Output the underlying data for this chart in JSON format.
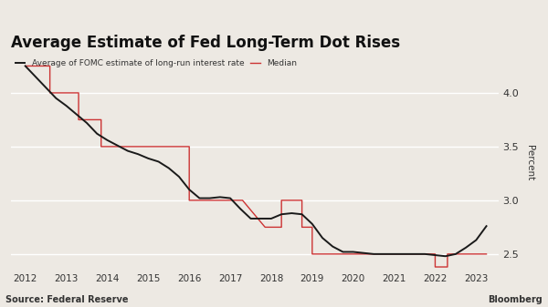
{
  "title": "Average Estimate of Fed Long-Term Dot Rises",
  "legend_avg": "Average of FOMC estimate of long-run interest rate",
  "legend_median": "Median",
  "source": "Source: Federal Reserve",
  "branding": "Bloomberg",
  "ylabel": "Percent",
  "background_color": "#ede9e3",
  "grid_color": "#ffffff",
  "avg_color": "#1a1a1a",
  "median_color": "#cc3333",
  "ylim": [
    2.35,
    4.35
  ],
  "yticks": [
    2.5,
    3.0,
    3.5,
    4.0
  ],
  "avg_x": [
    2012.0,
    2012.25,
    2012.5,
    2012.75,
    2013.0,
    2013.25,
    2013.5,
    2013.75,
    2014.0,
    2014.25,
    2014.5,
    2014.75,
    2015.0,
    2015.25,
    2015.5,
    2015.75,
    2016.0,
    2016.25,
    2016.5,
    2016.75,
    2017.0,
    2017.25,
    2017.5,
    2017.75,
    2018.0,
    2018.25,
    2018.5,
    2018.75,
    2019.0,
    2019.25,
    2019.5,
    2019.75,
    2020.0,
    2020.25,
    2020.5,
    2020.75,
    2021.0,
    2021.25,
    2021.5,
    2021.75,
    2022.0,
    2022.25,
    2022.5,
    2022.75,
    2023.0,
    2023.25
  ],
  "avg_y": [
    4.25,
    4.15,
    4.05,
    3.95,
    3.88,
    3.8,
    3.72,
    3.62,
    3.56,
    3.51,
    3.46,
    3.43,
    3.39,
    3.36,
    3.3,
    3.22,
    3.1,
    3.02,
    3.02,
    3.03,
    3.02,
    2.92,
    2.83,
    2.83,
    2.83,
    2.87,
    2.88,
    2.87,
    2.78,
    2.65,
    2.57,
    2.52,
    2.52,
    2.51,
    2.5,
    2.5,
    2.5,
    2.5,
    2.5,
    2.5,
    2.49,
    2.48,
    2.5,
    2.56,
    2.63,
    2.76
  ],
  "median_x": [
    2012.0,
    2012.6,
    2012.6,
    2013.3,
    2013.3,
    2013.85,
    2013.85,
    2014.4,
    2014.4,
    2015.0,
    2015.0,
    2015.55,
    2015.55,
    2016.0,
    2016.0,
    2016.3,
    2016.3,
    2016.9,
    2016.9,
    2017.3,
    2017.3,
    2017.85,
    2017.85,
    2018.25,
    2018.25,
    2018.75,
    2018.75,
    2019.0,
    2019.0,
    2019.5,
    2019.5,
    2020.0,
    2020.0,
    2021.75,
    2021.75,
    2022.0,
    2022.0,
    2022.3,
    2022.3,
    2022.7,
    2022.7,
    2023.25
  ],
  "median_y": [
    4.25,
    4.25,
    4.0,
    4.0,
    3.75,
    3.75,
    3.5,
    3.5,
    3.5,
    3.5,
    3.5,
    3.5,
    3.5,
    3.5,
    3.0,
    3.0,
    3.0,
    3.0,
    3.0,
    3.0,
    3.0,
    2.75,
    2.75,
    2.75,
    3.0,
    3.0,
    2.75,
    2.75,
    2.5,
    2.5,
    2.5,
    2.5,
    2.5,
    2.5,
    2.5,
    2.5,
    2.38,
    2.38,
    2.5,
    2.5,
    2.5,
    2.5
  ]
}
